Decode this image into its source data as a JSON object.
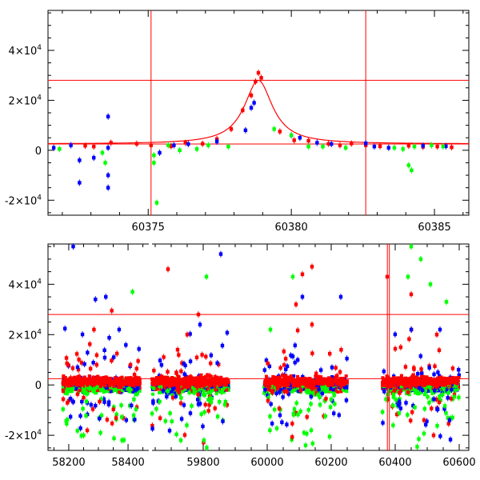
{
  "chart_data": [
    {
      "type": "scatter",
      "panel": "top",
      "xlim": [
        60371.5,
        60386.2
      ],
      "ylim": [
        -26000,
        56000
      ],
      "xticks_labeled": [
        "60375",
        "60380",
        "60385"
      ],
      "xtick_values": [
        60375,
        60380,
        60385
      ],
      "yticks": [
        {
          "value": 40000,
          "mant": "4×10",
          "exp": "4"
        },
        {
          "value": 20000,
          "mant": "2×10",
          "exp": "4"
        },
        {
          "value": 0,
          "mant": "0",
          "exp": ""
        },
        {
          "value": -20000,
          "mant": "-2×10",
          "exp": "4"
        }
      ],
      "hlines": [
        28000,
        2500
      ],
      "vlines": [
        60375.1,
        60382.6
      ],
      "model_curve": {
        "peak_x": 60378.85,
        "peak_y": 28000,
        "baseline": 2500,
        "width": 0.6,
        "color": "#ff0000"
      },
      "series": [
        {
          "color": "#ff0000",
          "points": [
            [
              60372.8,
              1800
            ],
            [
              60373.1,
              1500
            ],
            [
              60373.7,
              3000
            ],
            [
              60374.6,
              2600
            ],
            [
              60375.1,
              2000
            ],
            [
              60375.8,
              1600
            ],
            [
              60376.3,
              3000
            ],
            [
              60376.9,
              2600
            ],
            [
              60377.4,
              4500
            ],
            [
              60377.9,
              8500
            ],
            [
              60378.3,
              16000
            ],
            [
              60378.6,
              22000
            ],
            [
              60378.75,
              27500
            ],
            [
              60378.85,
              31000
            ],
            [
              60378.95,
              29000
            ],
            [
              60379.6,
              7500
            ],
            [
              60380.1,
              4000
            ],
            [
              60380.6,
              3800
            ],
            [
              60381.3,
              2600
            ],
            [
              60381.7,
              2000
            ],
            [
              60382.1,
              2700
            ],
            [
              60382.6,
              2000
            ],
            [
              60383.1,
              1600
            ],
            [
              60384.1,
              1800
            ],
            [
              60384.6,
              1400
            ],
            [
              60385.1,
              1500
            ],
            [
              60385.6,
              1200
            ]
          ]
        },
        {
          "color": "#0000ff",
          "points": [
            [
              60371.7,
              1000
            ],
            [
              60372.3,
              2000
            ],
            [
              60372.6,
              -4000
            ],
            [
              60372.6,
              -13000
            ],
            [
              60373.1,
              -3000
            ],
            [
              60373.6,
              13500
            ],
            [
              60373.6,
              -10000
            ],
            [
              60373.6,
              -15000
            ],
            [
              60373.6,
              1000
            ],
            [
              60375.4,
              -1000
            ],
            [
              60375.9,
              2000
            ],
            [
              60376.4,
              2500
            ],
            [
              60377.4,
              3500
            ],
            [
              60378.4,
              8000
            ],
            [
              60378.6,
              17000
            ],
            [
              60378.7,
              19000
            ],
            [
              60380.0,
              6000
            ],
            [
              60380.3,
              5000
            ],
            [
              60380.9,
              3000
            ],
            [
              60381.4,
              2500
            ],
            [
              60382.6,
              2800
            ],
            [
              60382.9,
              1500
            ],
            [
              60383.4,
              1000
            ],
            [
              60384.6,
              1800
            ],
            [
              60385.4,
              1600
            ]
          ]
        },
        {
          "color": "#00ff00",
          "points": [
            [
              60371.9,
              500
            ],
            [
              60373.4,
              -1000
            ],
            [
              60373.5,
              -5000
            ],
            [
              60375.2,
              -2000
            ],
            [
              60375.2,
              -5000
            ],
            [
              60375.3,
              -21000
            ],
            [
              60375.7,
              2000
            ],
            [
              60376.1,
              0
            ],
            [
              60376.7,
              500
            ],
            [
              60377.1,
              2000
            ],
            [
              60377.8,
              1500
            ],
            [
              60379.4,
              8500
            ],
            [
              60380.0,
              6000
            ],
            [
              60380.6,
              1500
            ],
            [
              60381.1,
              1500
            ],
            [
              60381.9,
              1000
            ],
            [
              60383.6,
              1000
            ],
            [
              60383.9,
              500
            ],
            [
              60384.1,
              -6000
            ],
            [
              60384.2,
              -8000
            ],
            [
              60384.3,
              1500
            ],
            [
              60384.9,
              2000
            ],
            [
              60385.3,
              1500
            ]
          ]
        }
      ]
    },
    {
      "type": "scatter",
      "panel": "bottom",
      "xlim": [
        58130,
        60630
      ],
      "ylim": [
        -26000,
        56000
      ],
      "xticks_labeled": [
        "58200",
        "58400",
        "59800",
        "60000",
        "60200",
        "60400",
        "60600"
      ],
      "xtick_values": [
        58200,
        58400,
        58600,
        59800,
        60000,
        60200,
        60400,
        60600
      ],
      "axis_break": {
        "from": 58470,
        "to": 59640
      },
      "yticks": [
        {
          "value": 40000,
          "mant": "4×10",
          "exp": "4"
        },
        {
          "value": 20000,
          "mant": "2×10",
          "exp": "4"
        },
        {
          "value": 0,
          "mant": "0",
          "exp": ""
        },
        {
          "value": -20000,
          "mant": "-2×10",
          "exp": "4"
        }
      ],
      "hlines": [
        28000,
        2500
      ],
      "spike_x": 60378,
      "season_ranges": [
        [
          58180,
          58440
        ],
        [
          59640,
          59880
        ],
        [
          59990,
          60250
        ],
        [
          60360,
          60600
        ]
      ],
      "colors": [
        "#ff0000",
        "#0000ff",
        "#00ff00"
      ],
      "outliers": [
        {
          "color": "#ff0000",
          "points": [
            [
              58285,
              22000
            ],
            [
              58345,
              29500
            ],
            [
              59690,
              46000
            ],
            [
              59750,
              20000
            ],
            [
              59720,
              14000
            ],
            [
              59785,
              28000
            ],
            [
              60110,
              44000
            ],
            [
              60140,
              47000
            ],
            [
              60090,
              32000
            ],
            [
              60140,
              24000
            ],
            [
              60375,
              43000
            ],
            [
              60450,
              36000
            ],
            [
              60490,
              -14000
            ],
            [
              60520,
              -20000
            ],
            [
              60530,
              20000
            ]
          ]
        },
        {
          "color": "#0000ff",
          "points": [
            [
              58215,
              55000
            ],
            [
              58290,
              34000
            ],
            [
              58325,
              35000
            ],
            [
              58370,
              22000
            ],
            [
              59740,
              -8000
            ],
            [
              59790,
              24000
            ],
            [
              59855,
              52000
            ],
            [
              60040,
              -12000
            ],
            [
              60110,
              35000
            ],
            [
              60230,
              35000
            ],
            [
              60410,
              -8000
            ],
            [
              60450,
              22000
            ],
            [
              60540,
              22000
            ],
            [
              60570,
              -14000
            ]
          ]
        },
        {
          "color": "#00ff00",
          "points": [
            [
              58250,
              -20000
            ],
            [
              58380,
              -22000
            ],
            [
              58415,
              37000
            ],
            [
              59730,
              -22000
            ],
            [
              59810,
              43000
            ],
            [
              60010,
              22000
            ],
            [
              60080,
              43000
            ],
            [
              60120,
              -24000
            ],
            [
              60450,
              55000
            ],
            [
              60440,
              43000
            ],
            [
              60480,
              50000
            ],
            [
              60510,
              40000
            ],
            [
              60560,
              33000
            ]
          ]
        }
      ]
    }
  ]
}
